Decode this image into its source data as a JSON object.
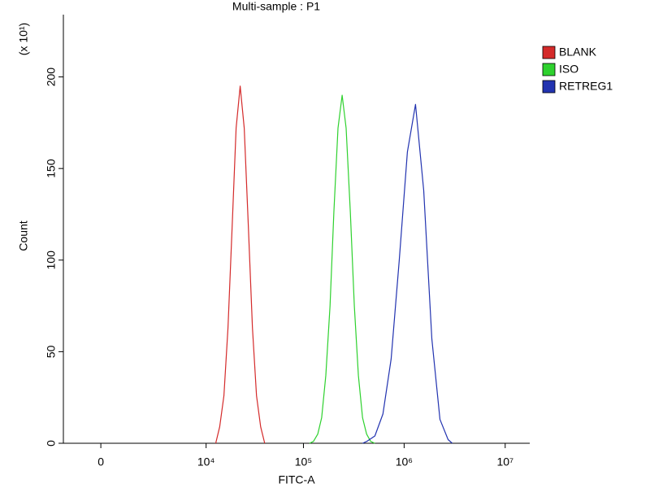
{
  "chart_data": {
    "type": "line",
    "title": "Multi-sample : P1",
    "x_label": "FITC-A",
    "y_label": "Count",
    "y_multiplier": "(x 10¹)",
    "xscale": "biexponential",
    "xlim": [
      -574,
      17500000
    ],
    "xticks": [
      0,
      {
        "value": 10000,
        "label": "10⁴"
      },
      {
        "value": 100000,
        "label": "10⁵"
      },
      {
        "value": 1000000,
        "label": "10⁶"
      },
      {
        "value": 10000000,
        "label": "10⁷"
      }
    ],
    "ylim": [
      0,
      234
    ],
    "yticks": [
      0,
      50,
      100,
      150,
      200
    ],
    "legend": "right",
    "series": [
      {
        "name": "BLANK",
        "color": "#d42a2a",
        "x": [
          12700,
          14000,
          15500,
          17100,
          18900,
          20800,
          22900,
          25200,
          27800,
          30600,
          33700,
          37100,
          40800
        ],
        "values": [
          0,
          9,
          26,
          63,
          118,
          172,
          195,
          172,
          118,
          63,
          26,
          9,
          0
        ]
      },
      {
        "name": "ISO",
        "color": "#2ed12e",
        "x": [
          115000,
          126000,
          139000,
          152000,
          167000,
          184000,
          201000,
          221000,
          243000,
          266000,
          293000,
          321000,
          352000,
          387000,
          425000,
          466000,
          512000
        ],
        "values": [
          0,
          1,
          5,
          14,
          37,
          75,
          126,
          172,
          190,
          172,
          126,
          75,
          37,
          14,
          5,
          1,
          0
        ]
      },
      {
        "name": "RETREG1",
        "color": "#2233b0",
        "x": [
          388000,
          426000,
          513000,
          617000,
          743000,
          895000,
          1077000,
          1297000,
          1563000,
          1879000,
          2265000,
          2723000,
          2992000
        ],
        "values": [
          0,
          1,
          4,
          16,
          46,
          100,
          159,
          185,
          138,
          57,
          13,
          2,
          0
        ]
      }
    ]
  }
}
